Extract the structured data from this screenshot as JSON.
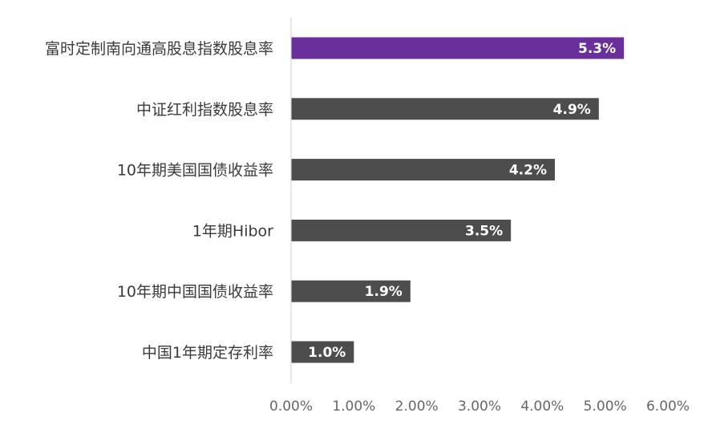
{
  "chart_data": {
    "type": "bar",
    "orientation": "horizontal",
    "categories": [
      "富时定制南向通高股息指数股息率",
      "中证红利指数股息率",
      "10年期美国国债收益率",
      "1年期Hibor",
      "10年期中国国债收益率",
      "中国1年期定存利率"
    ],
    "values": [
      5.3,
      4.9,
      4.2,
      3.5,
      1.9,
      1.0
    ],
    "value_labels": [
      "5.3%",
      "4.9%",
      "4.2%",
      "3.5%",
      "1.9%",
      "1.0%"
    ],
    "xlim": [
      0,
      6
    ],
    "x_ticks": [
      0,
      1,
      2,
      3,
      4,
      5,
      6
    ],
    "x_tick_labels": [
      "0.00%",
      "1.00%",
      "2.00%",
      "3.00%",
      "4.00%",
      "5.00%",
      "6.00%"
    ],
    "title": "",
    "xlabel": "",
    "ylabel": "",
    "grid": false,
    "legend": "none",
    "colors": {
      "highlight_bar": "#6a2f9a",
      "default_bar": "#4d4d4d",
      "value_label": "#ffffff",
      "category_label": "#3a3a3a",
      "tick_label": "#666666",
      "axis_line": "#d9d9d9"
    }
  }
}
